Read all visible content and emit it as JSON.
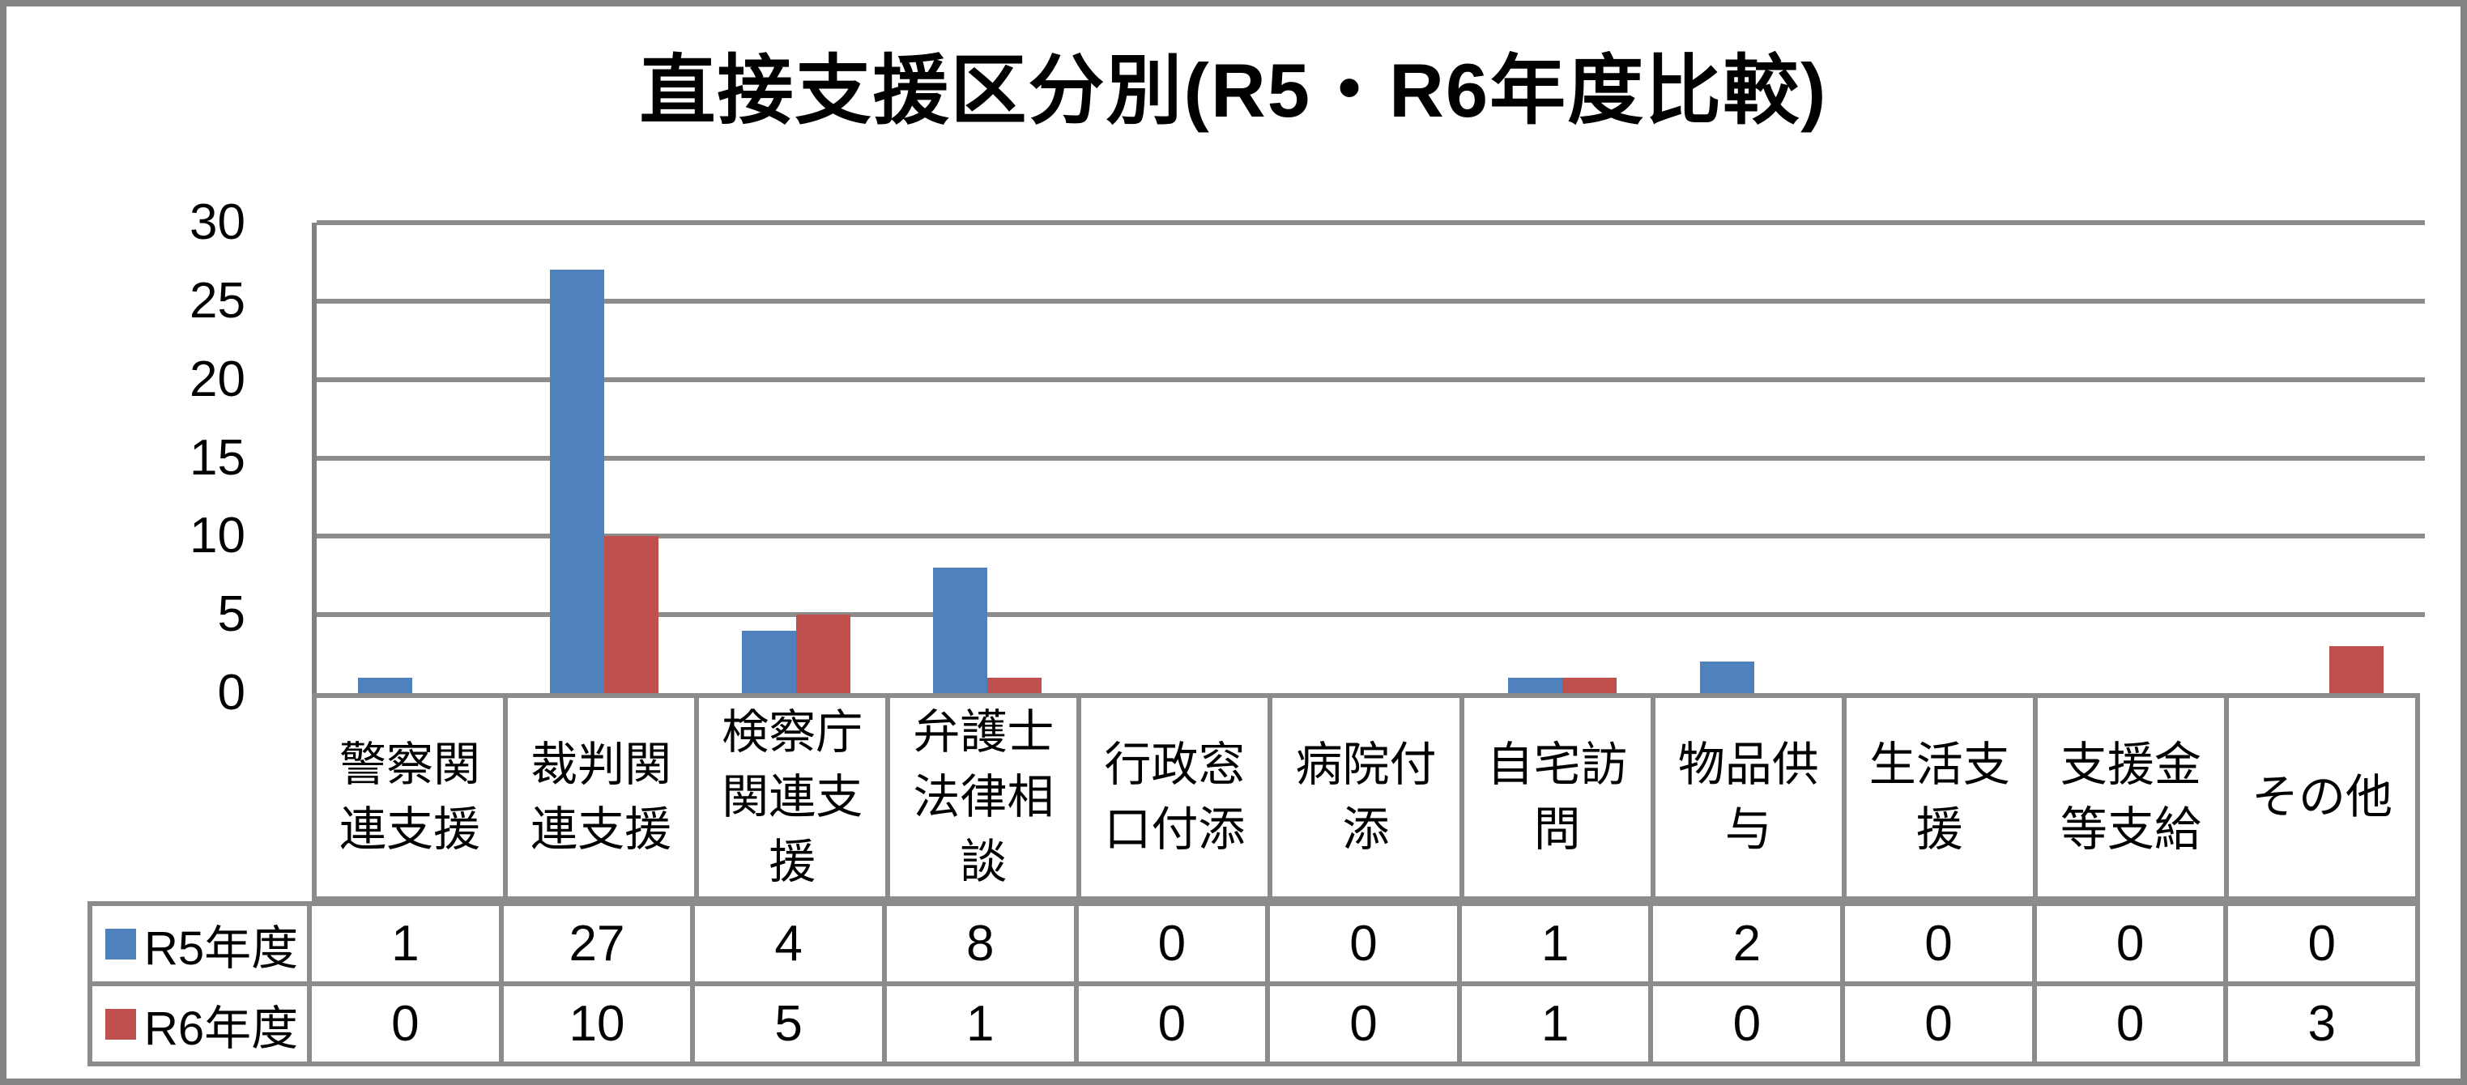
{
  "chart_data": {
    "type": "bar",
    "title": "直接支援区分別(R5・R6年度比較)",
    "categories": [
      "警察関連支援",
      "裁判関連支援",
      "検察庁関連支援",
      "弁護士法律相談",
      "行政窓口付添",
      "病院付添",
      "自宅訪問",
      "物品供与",
      "生活支援",
      "支援金等支給",
      "その他"
    ],
    "series": [
      {
        "name": "R5年度",
        "color": "#4F81BD",
        "values": [
          1,
          27,
          4,
          8,
          0,
          0,
          1,
          2,
          0,
          0,
          0
        ]
      },
      {
        "name": "R6年度",
        "color": "#C0504D",
        "values": [
          0,
          10,
          5,
          1,
          0,
          0,
          1,
          0,
          0,
          0,
          3
        ]
      }
    ],
    "ylim": [
      0,
      30
    ],
    "ytick_step": 5,
    "ytick_labels": [
      "0",
      "5",
      "10",
      "15",
      "20",
      "25",
      "30"
    ],
    "grid": true,
    "legend_position": "data-table-left",
    "data_table_shown": true,
    "colors": {
      "grid": "#8C8C8C",
      "axis": "#808080",
      "frame_border": "#848484",
      "text": "#000000",
      "background": "#FFFFFF"
    }
  }
}
